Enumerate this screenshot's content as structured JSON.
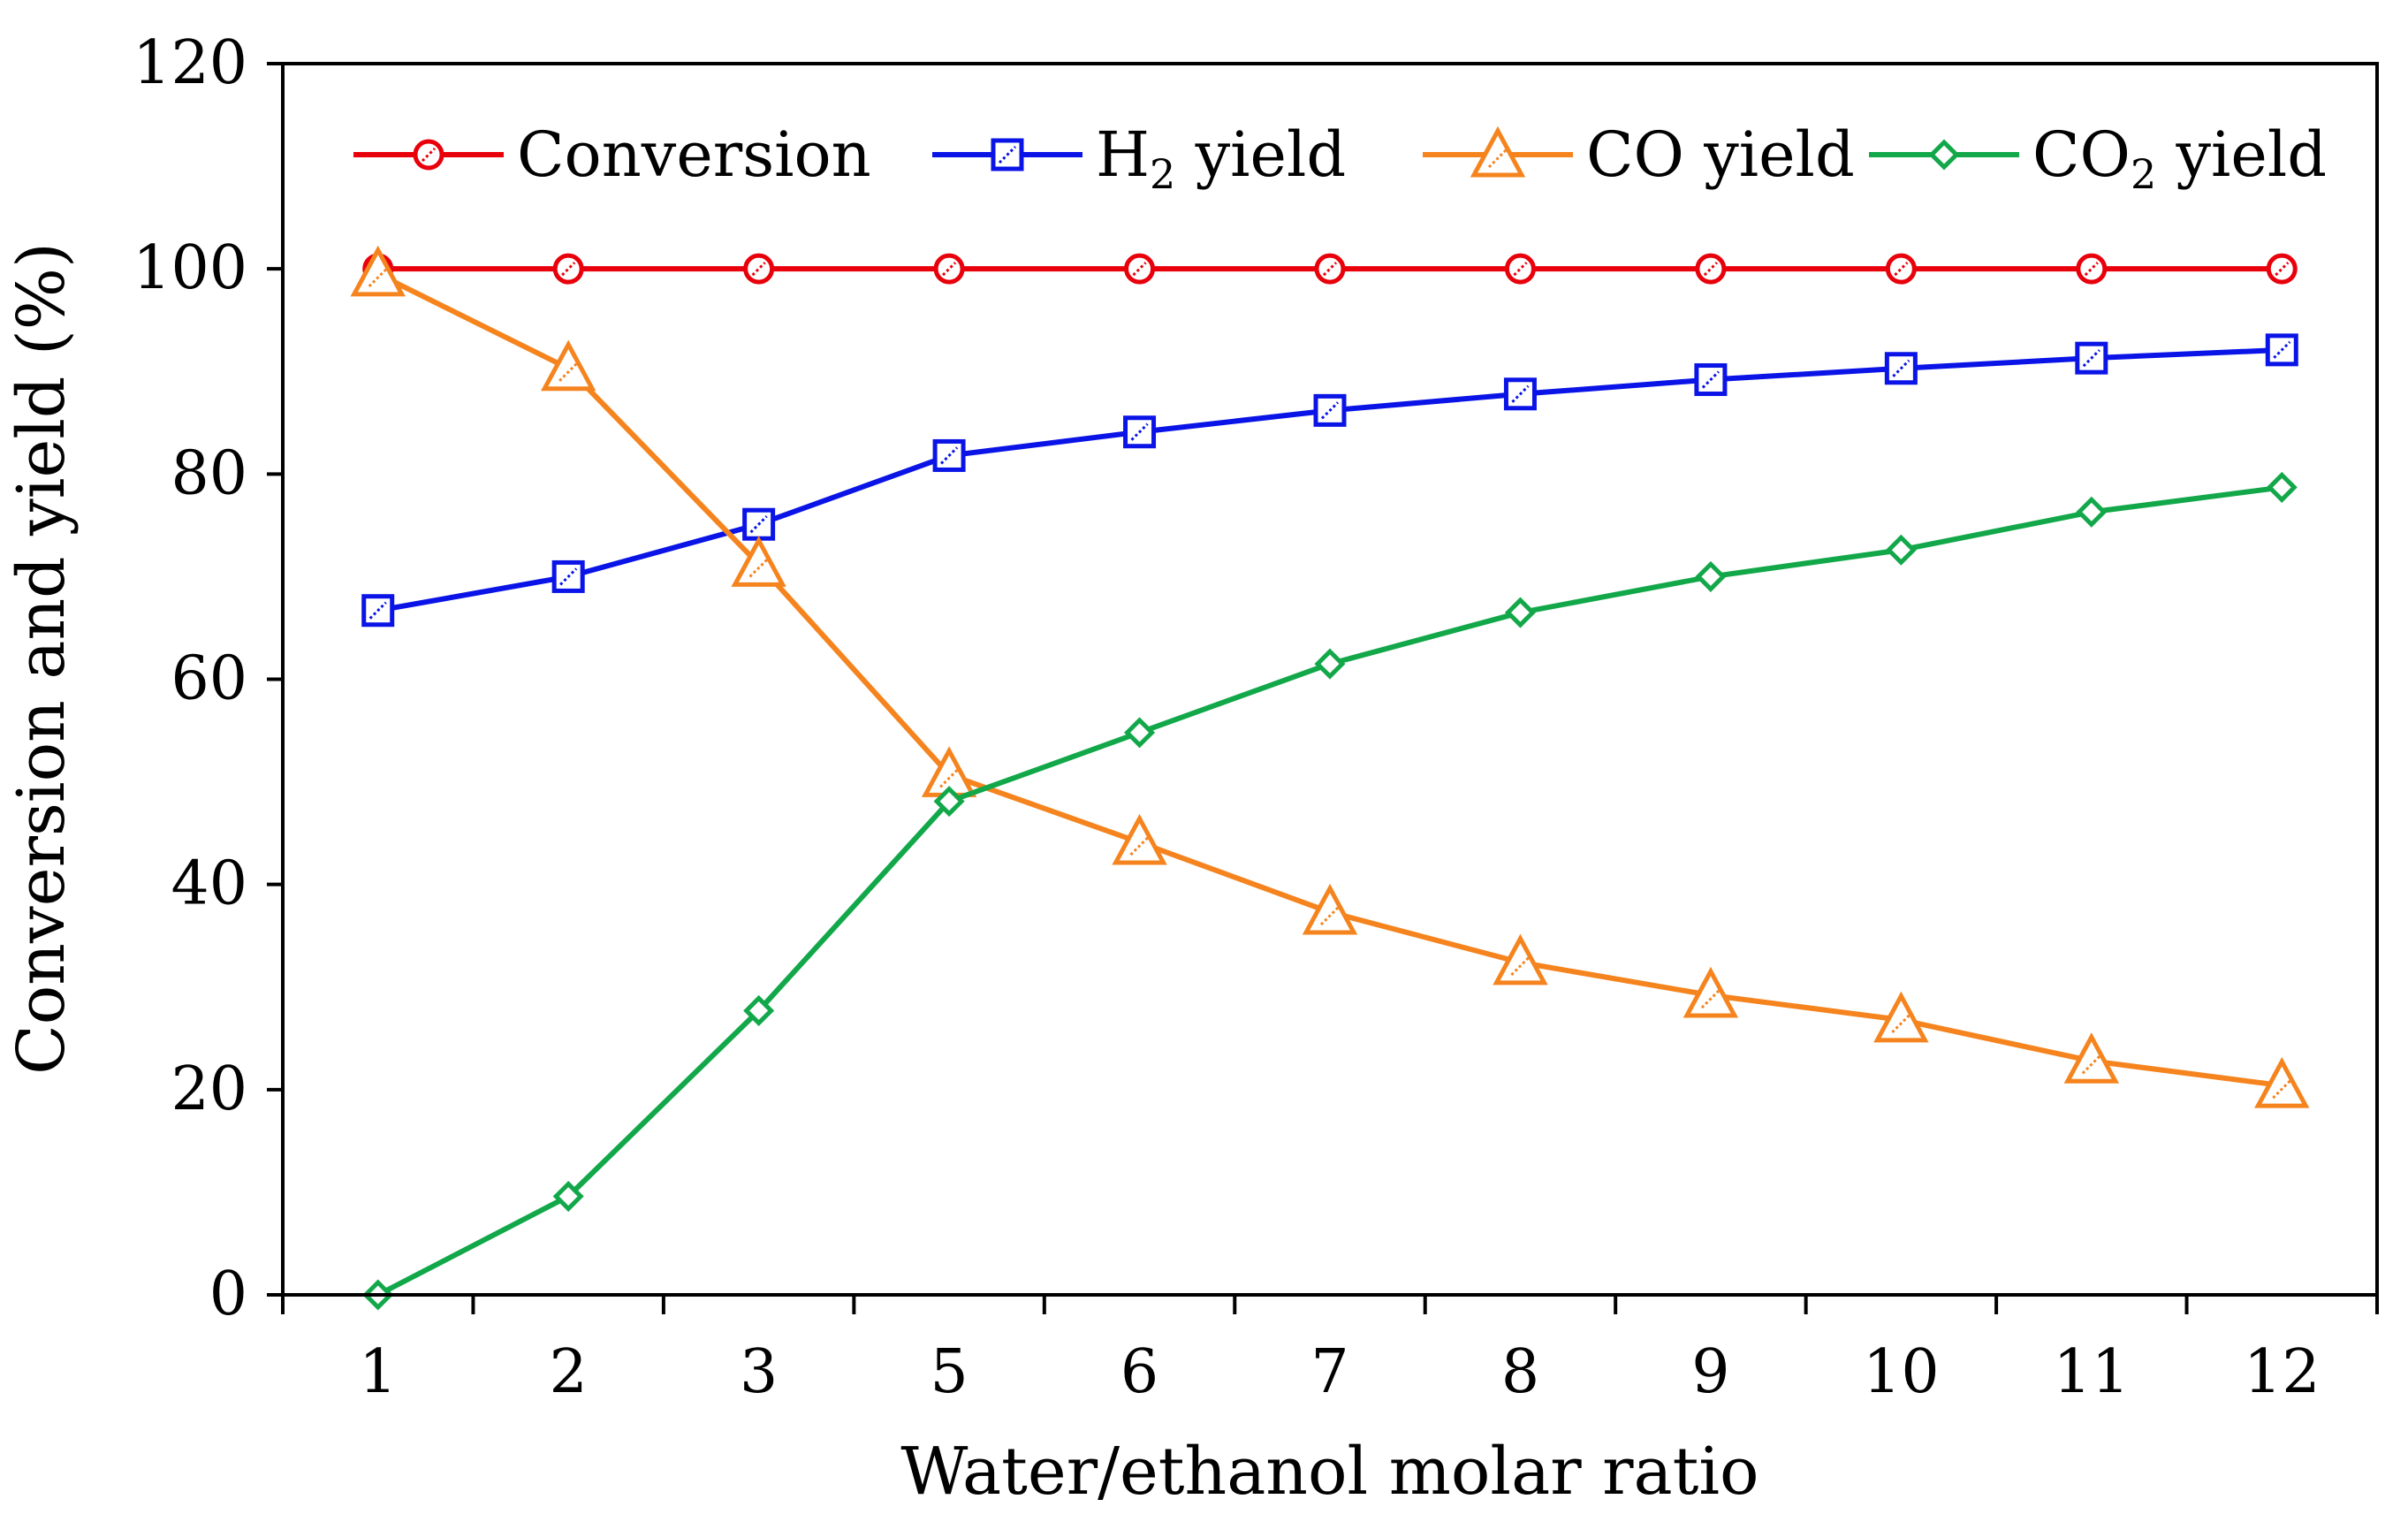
{
  "chart_data": {
    "type": "line",
    "title": "",
    "xlabel": "Water/ethanol molar ratio",
    "ylabel": "Conversion and yield (%)",
    "ylim": [
      0,
      120
    ],
    "yticks": [
      0,
      20,
      40,
      60,
      80,
      100,
      120
    ],
    "grid": false,
    "legend_position": "top",
    "categories": [
      "1",
      "2",
      "3",
      "5",
      "6",
      "7",
      "8",
      "9",
      "10",
      "11",
      "12"
    ],
    "series": [
      {
        "name": "Conversion",
        "color": "#e8000b",
        "marker": "circle",
        "values": [
          100,
          100,
          100,
          100,
          100,
          100,
          100,
          100,
          100,
          100,
          100
        ]
      },
      {
        "name": "H2 yield",
        "label_main": "H",
        "label_sub": "2",
        "label_rest": " yield",
        "color": "#0a14e6",
        "marker": "square",
        "values": [
          66.7,
          70,
          75.1,
          81.8,
          84.1,
          86.2,
          87.8,
          89.2,
          90.3,
          91.3,
          92.1
        ]
      },
      {
        "name": "CO yield",
        "color": "#f5841f",
        "marker": "triangle",
        "values": [
          99.5,
          90.3,
          71.2,
          50.7,
          44.1,
          37.3,
          32.4,
          29.2,
          26.8,
          22.8,
          20.4
        ]
      },
      {
        "name": "CO2 yield",
        "label_main": "CO",
        "label_sub": "2",
        "label_rest": " yield",
        "color": "#12a84a",
        "marker": "diamond",
        "values": [
          0,
          9.6,
          27.7,
          48.1,
          54.8,
          61.5,
          66.5,
          70,
          72.6,
          76.3,
          78.7
        ]
      }
    ]
  }
}
